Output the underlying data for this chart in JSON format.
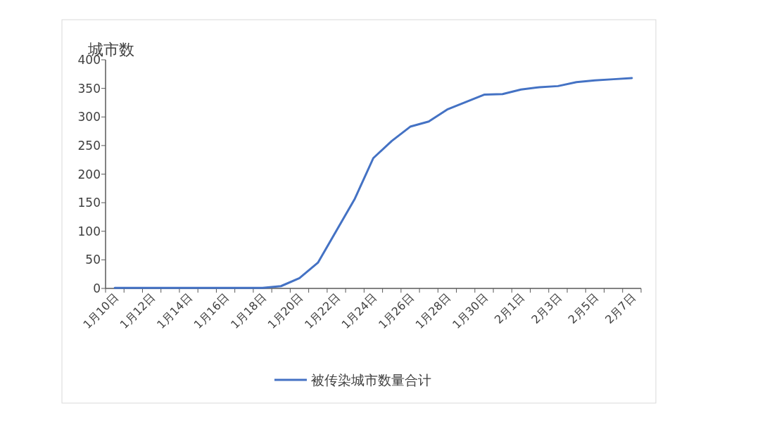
{
  "chart_data": {
    "type": "line",
    "ylabel": "城市数",
    "categories": [
      "1月10日",
      null,
      "1月12日",
      null,
      "1月14日",
      null,
      "1月16日",
      null,
      "1月18日",
      null,
      "1月20日",
      null,
      "1月22日",
      null,
      "1月24日",
      null,
      "1月26日",
      null,
      "1月28日",
      null,
      "1月30日",
      null,
      "2月1日",
      null,
      "2月3日",
      null,
      "2月5日",
      null,
      "2月7日"
    ],
    "series": [
      {
        "name": "被传染城市数量合计",
        "color": "#4472c4",
        "values": [
          1,
          1,
          1,
          1,
          1,
          1,
          1,
          1,
          1,
          4,
          18,
          45,
          101,
          157,
          228,
          258,
          283,
          292,
          313,
          326,
          339,
          340,
          348,
          352,
          354,
          361,
          364,
          366,
          368
        ]
      }
    ],
    "ylim": [
      0,
      400
    ],
    "yticks": [
      0,
      50,
      100,
      150,
      200,
      250,
      300,
      350,
      400
    ],
    "grid": false,
    "legend": "bottom",
    "marker": "none",
    "line_style": "solid"
  }
}
